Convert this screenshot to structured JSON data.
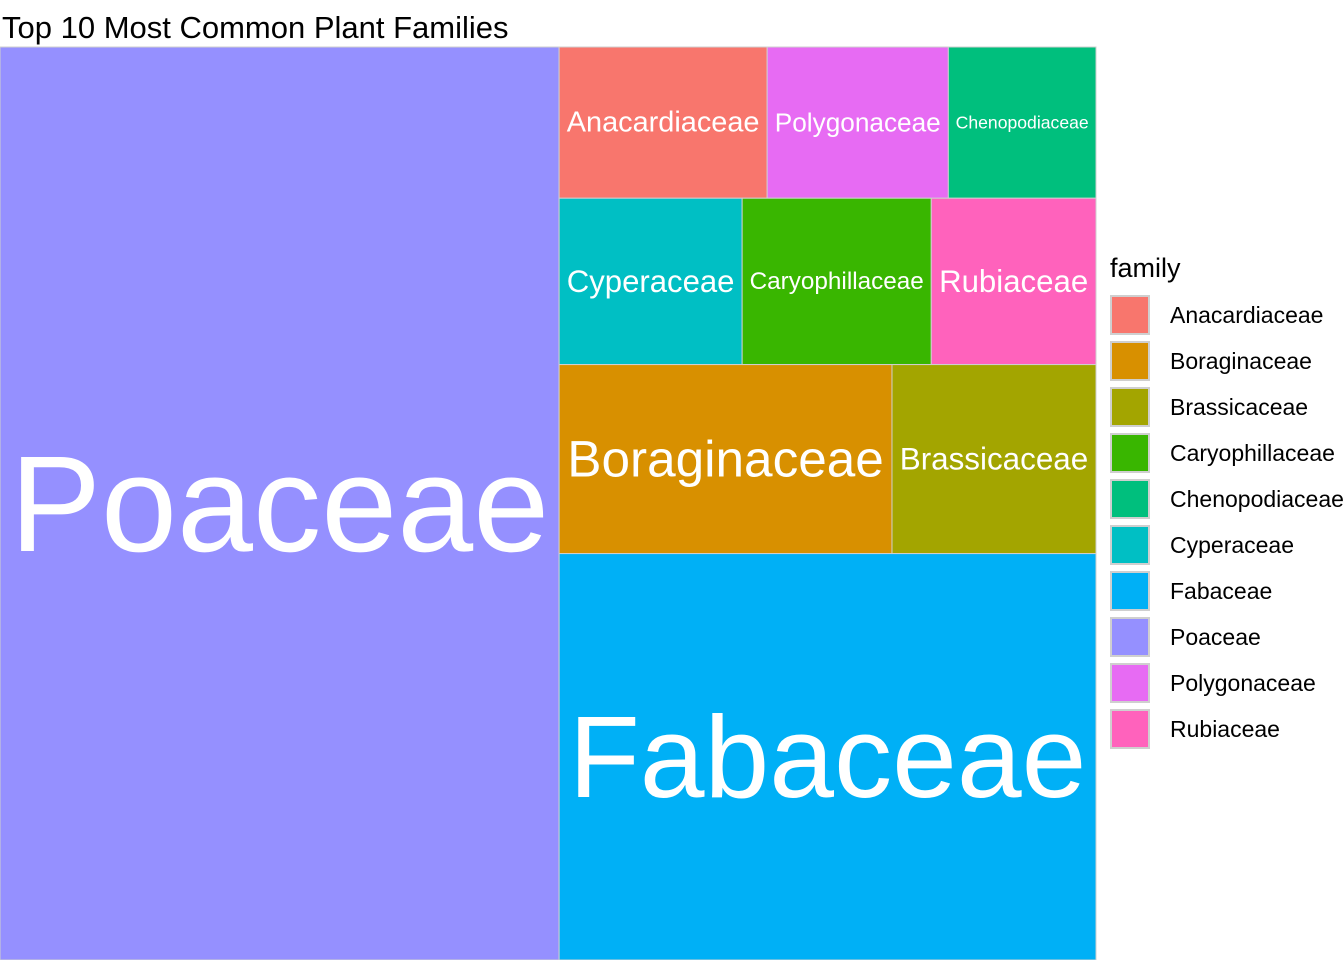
{
  "chart_data": {
    "type": "treemap",
    "title": "Top 10 Most Common Plant Families",
    "legend_title": "family",
    "legend_position": "right",
    "items": [
      {
        "name": "Poaceae",
        "value": 503,
        "color": "#9590FF"
      },
      {
        "name": "Fabaceae",
        "value": 215,
        "color": "#00B0F6"
      },
      {
        "name": "Boraginaceae",
        "value": 62,
        "color": "#D89000"
      },
      {
        "name": "Brassicaceae",
        "value": 38,
        "color": "#A3A500"
      },
      {
        "name": "Cyperaceae",
        "value": 30,
        "color": "#00BFC4"
      },
      {
        "name": "Caryophillaceae",
        "value": 31,
        "color": "#39B600"
      },
      {
        "name": "Rubiaceae",
        "value": 27,
        "color": "#FF62BC"
      },
      {
        "name": "Anacardiaceae",
        "value": 31,
        "color": "#F8766D"
      },
      {
        "name": "Polygonaceae",
        "value": 27,
        "color": "#E76BF3"
      },
      {
        "name": "Chenopodiaceae",
        "value": 22,
        "color": "#00BF7D"
      }
    ],
    "legend": [
      "Anacardiaceae",
      "Boraginaceae",
      "Brassicaceae",
      "Caryophillaceae",
      "Chenopodiaceae",
      "Cyperaceae",
      "Fabaceae",
      "Poaceae",
      "Polygonaceae",
      "Rubiaceae"
    ]
  }
}
